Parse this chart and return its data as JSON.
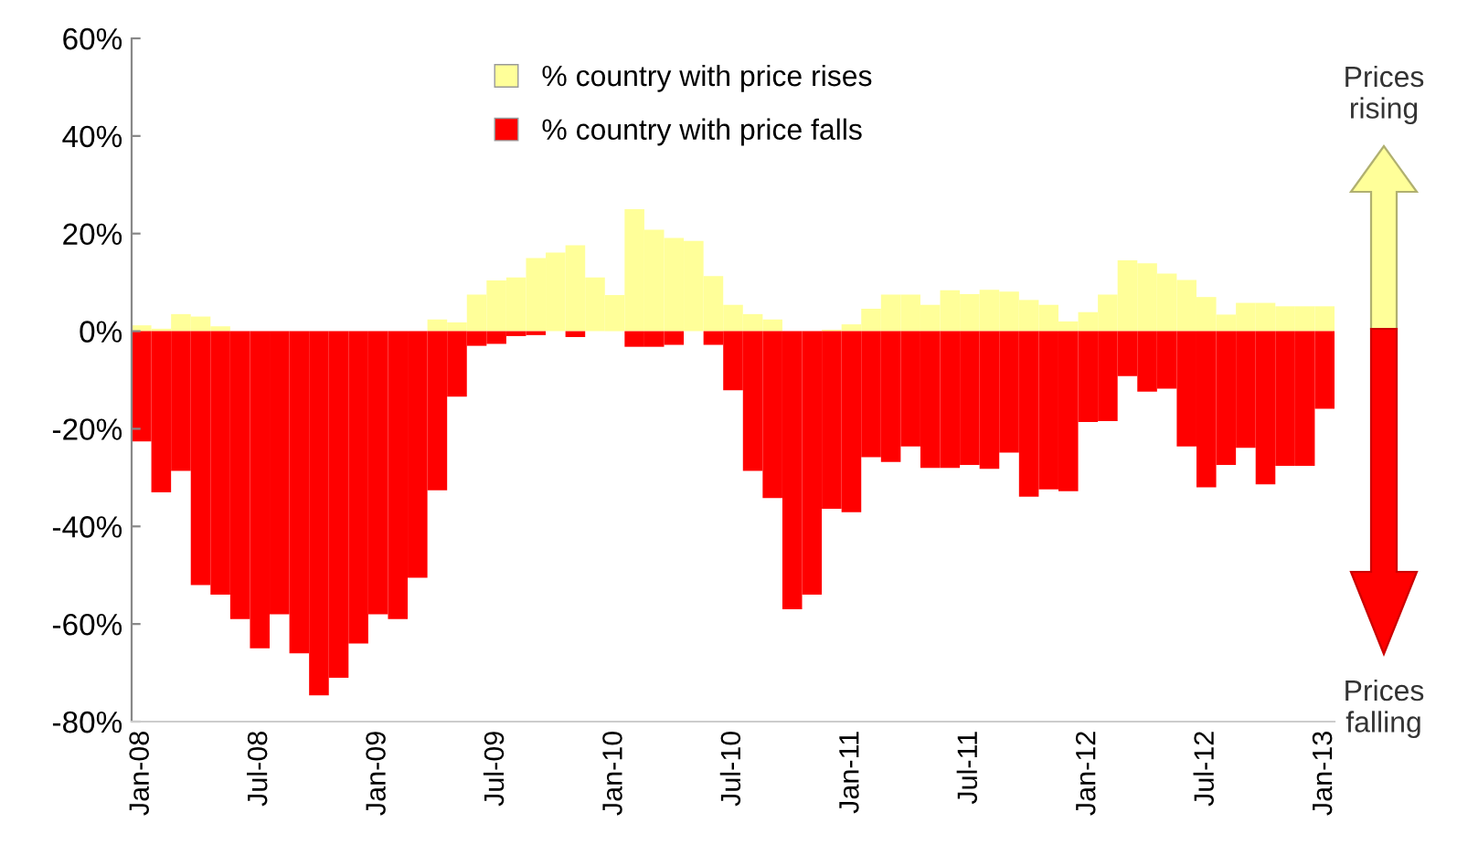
{
  "chart_data": {
    "type": "bar",
    "categories": [
      "Jan-08",
      null,
      null,
      null,
      null,
      null,
      "Jul-08",
      null,
      null,
      null,
      null,
      null,
      "Jan-09",
      null,
      null,
      null,
      null,
      null,
      "Jul-09",
      null,
      null,
      null,
      null,
      null,
      "Jan-10",
      null,
      null,
      null,
      null,
      null,
      "Jul-10",
      null,
      null,
      null,
      null,
      null,
      "Jan-11",
      null,
      null,
      null,
      null,
      null,
      "Jul-11",
      null,
      null,
      null,
      null,
      null,
      "Jan-12",
      null,
      null,
      null,
      null,
      null,
      "Jul-12",
      null,
      null,
      null,
      null,
      null,
      "Jan-13"
    ],
    "series": [
      {
        "name": "% country with price rises",
        "color": "#ffff99",
        "values": [
          1.2,
          0.5,
          3.5,
          3,
          1,
          null,
          null,
          null,
          null,
          null,
          null,
          null,
          null,
          null,
          null,
          2.4,
          1.8,
          7.5,
          10.4,
          11,
          15,
          16.1,
          17.6,
          11,
          7.4,
          25,
          20.8,
          19.1,
          18.5,
          11.3,
          5.4,
          3.5,
          2.4,
          null,
          null,
          0.3,
          1.4,
          4.6,
          7.5,
          7.5,
          5.4,
          8.4,
          7.6,
          8.5,
          8.1,
          6.4,
          5.4,
          2,
          3.9,
          7.5,
          14.5,
          13.9,
          11.8,
          10.5,
          7,
          3.4,
          5.8,
          5.8,
          5.1,
          5.1,
          5.1
        ]
      },
      {
        "name": "% country with price falls",
        "color": "#ff0000",
        "values": [
          -22.6,
          -33,
          -28.6,
          -52,
          -54,
          -59,
          -65,
          -58,
          -66,
          -74.6,
          -71,
          -64,
          -58,
          -59,
          -50.5,
          -32.6,
          -13.4,
          -3,
          -2.6,
          -1,
          -0.8,
          null,
          -1.2,
          null,
          null,
          -3.2,
          -3.2,
          -2.8,
          null,
          -2.8,
          -12.1,
          -28.6,
          -34.2,
          -57,
          -54,
          -36.4,
          -37.1,
          -25.8,
          -26.8,
          -23.6,
          -28,
          -28,
          -27.4,
          -28.2,
          -24.9,
          -33.9,
          -32.4,
          -32.8,
          -18.6,
          -18.4,
          -9.2,
          -12.4,
          -11.8,
          -23.6,
          -32,
          -27.4,
          -23.9,
          -31.4,
          -27.6,
          -27.6,
          -15.9
        ]
      }
    ],
    "ylim": [
      -80,
      60
    ],
    "yticks": [
      {
        "value": -80,
        "label": "-80%"
      },
      {
        "value": -60,
        "label": "-60%"
      },
      {
        "value": -40,
        "label": "-40%"
      },
      {
        "value": -20,
        "label": "-20%"
      },
      {
        "value": 0,
        "label": "0%"
      },
      {
        "value": 20,
        "label": "20%"
      },
      {
        "value": 40,
        "label": "40%"
      },
      {
        "value": 60,
        "label": "60%"
      }
    ],
    "stacked": true,
    "legend": "top",
    "annotations": [
      "Prices\nrising",
      "Prices\nfalling"
    ]
  }
}
